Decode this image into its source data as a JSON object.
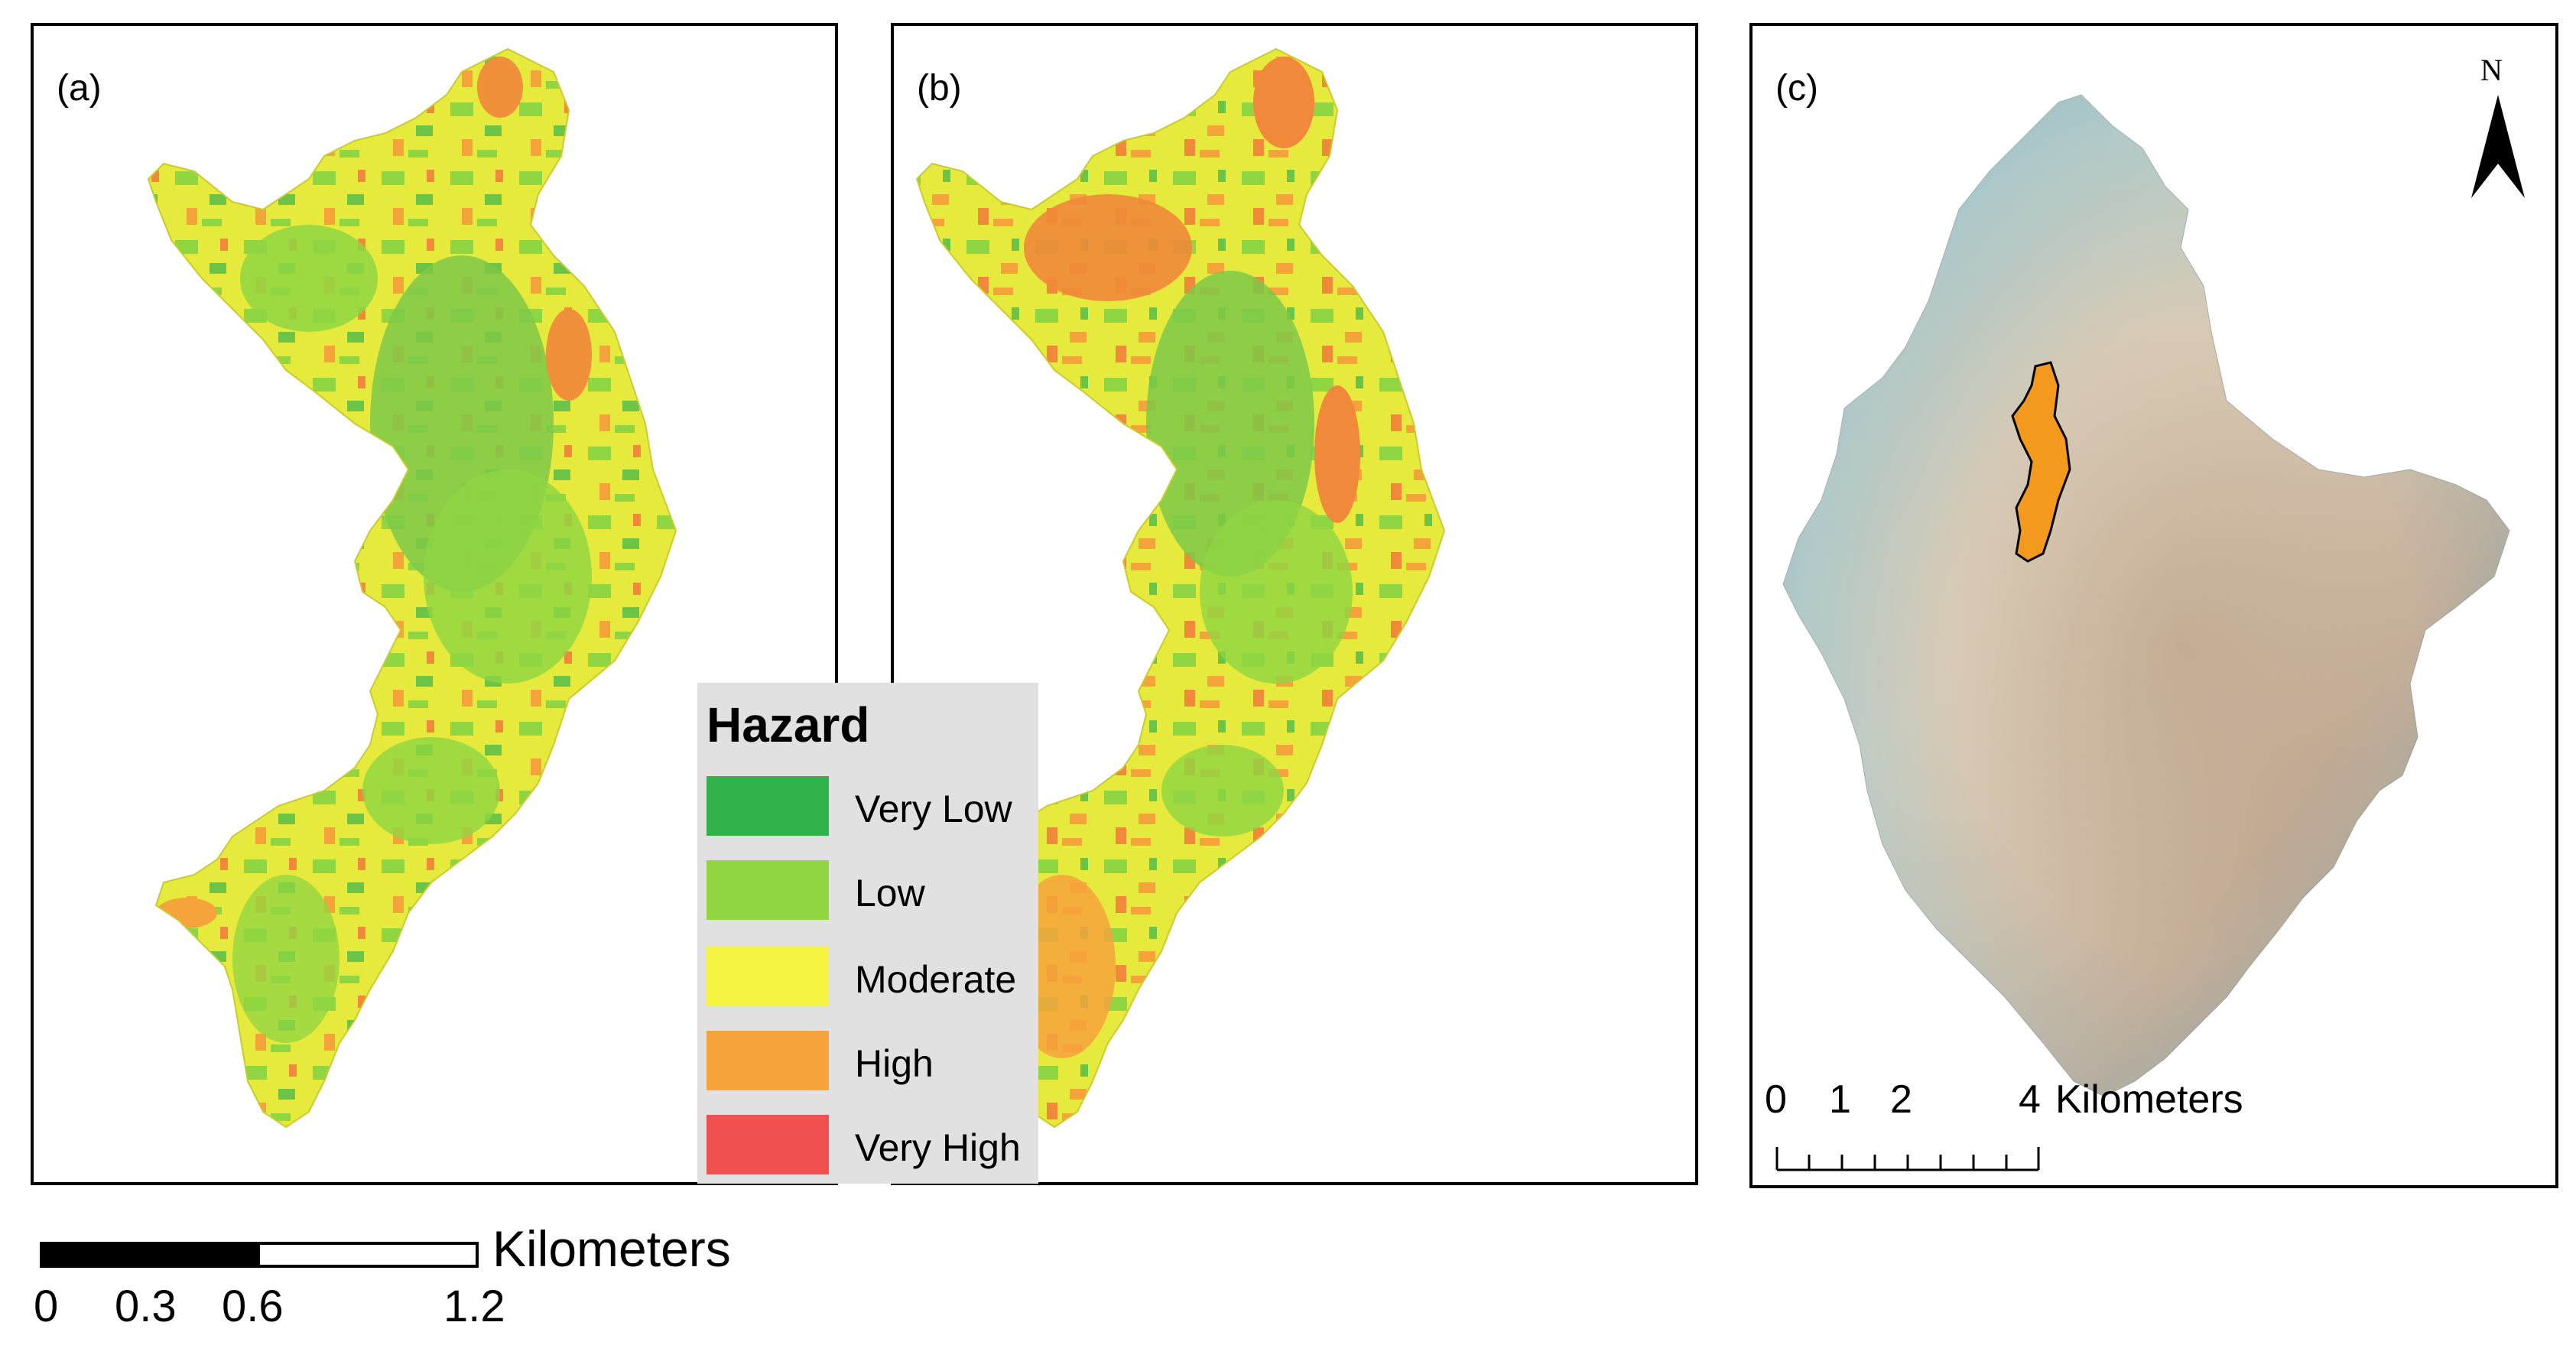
{
  "panels": {
    "a": {
      "label": "(a)"
    },
    "b": {
      "label": "(b)"
    },
    "c": {
      "label": "(c)",
      "north_label": "N"
    }
  },
  "legend": {
    "title": "Hazard",
    "items": [
      {
        "label": "Very Low",
        "color": "#2fb34a"
      },
      {
        "label": "Low",
        "color": "#8fd642"
      },
      {
        "label": "Moderate",
        "color": "#f5f542"
      },
      {
        "label": "High",
        "color": "#f5a33b"
      },
      {
        "label": "Very High",
        "color": "#f05050"
      }
    ]
  },
  "scalebar_main": {
    "unit": "Kilometers",
    "ticks": [
      "0",
      "0.3",
      "0.6",
      "1.2"
    ]
  },
  "scalebar_inset": {
    "unit": "Kilometers",
    "ticks": [
      "0",
      "1",
      "2",
      "4"
    ]
  },
  "colors": {
    "very_low": "#2fb34a",
    "low": "#8fd642",
    "moderate": "#f5f542",
    "high": "#f5a33b",
    "study_area": "#f39a1e",
    "terrain_brown": "#b89c86",
    "terrain_blue": "#7fb7c8"
  }
}
